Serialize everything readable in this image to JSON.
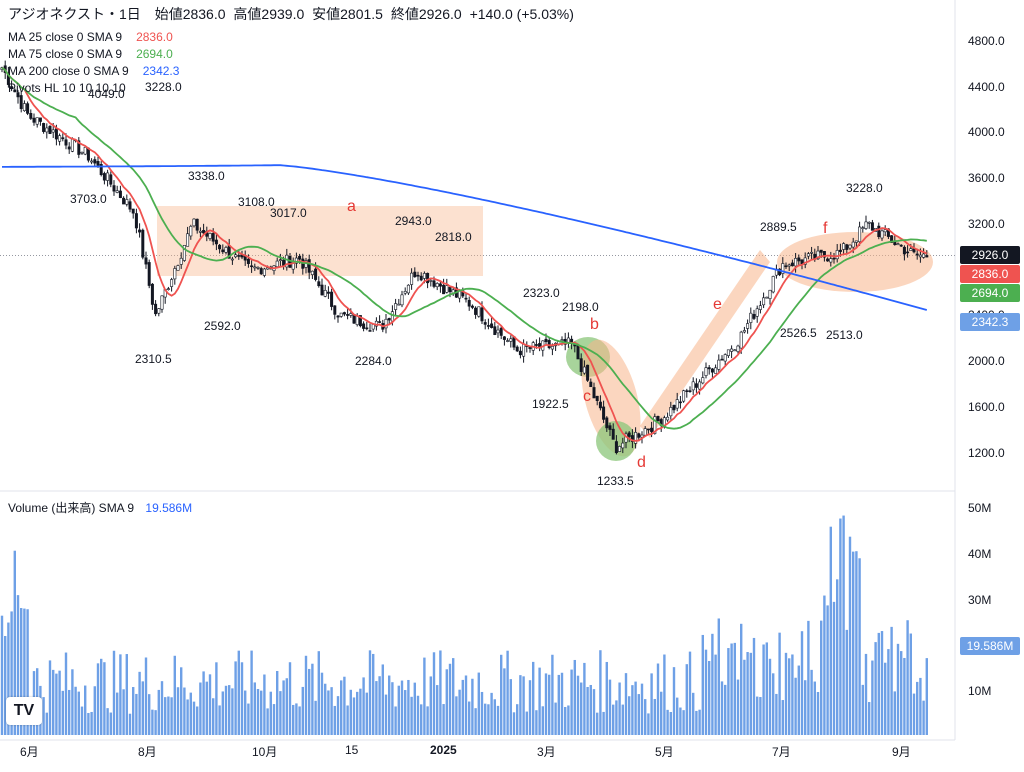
{
  "header": {
    "symbol": "アジオネクスト・1日",
    "open_label": "始値",
    "open": "2836.0",
    "high_label": "高値",
    "high": "2939.0",
    "low_label": "安値",
    "low": "2801.5",
    "close_label": "終値",
    "close": "2926.0",
    "change": "+140.0 (+5.03%)"
  },
  "indicators": [
    {
      "label": "MA 25 close 0 SMA 9",
      "value": "2836.0",
      "color": "#ef5350"
    },
    {
      "label": "MA 75 close 0 SMA 9",
      "value": "2694.0",
      "color": "#4caf50"
    },
    {
      "label": "MA 200 close 0 SMA 9",
      "value": "2342.3",
      "color": "#2962ff"
    },
    {
      "label": "Pivots HL 10 10 10 10",
      "value": "",
      "color": "#131722"
    }
  ],
  "volume_header": {
    "label": "Volume (出来高)  SMA 9",
    "value": "19.586M"
  },
  "price_axis": [
    "4800.0",
    "4400.0",
    "4000.0",
    "3600.0",
    "3200.0",
    "2400.0",
    "2000.0",
    "1600.0",
    "1200.0"
  ],
  "volume_axis": [
    "50M",
    "40M",
    "30M",
    "10M"
  ],
  "time_axis": [
    "6月",
    "8月",
    "10月",
    "15",
    "2025",
    "3月",
    "5月",
    "7月",
    "9月"
  ],
  "price_labels": {
    "last": "2926.0",
    "ma25": "2836.0",
    "ma75": "2694.0",
    "ma200": "2342.3",
    "volume": "19.586M"
  },
  "pivots": [
    "4049.0",
    "3228.0",
    "3703.0",
    "3338.0",
    "3108.0",
    "3017.0",
    "2310.5",
    "2592.0",
    "2943.0",
    "2818.0",
    "2284.0",
    "2323.0",
    "2198.0",
    "1922.5",
    "1233.5",
    "2889.5",
    "3228.0",
    "2526.5",
    "2513.0"
  ],
  "annotations": [
    "a",
    "b",
    "c",
    "d",
    "e",
    "f"
  ],
  "colors": {
    "up": "#ffffff",
    "down": "#131722",
    "ma25": "#ef5350",
    "ma75": "#4caf50",
    "ma200": "#2962ff",
    "volume": "#6ea0e6",
    "highlight": "#f7b58a",
    "green_zone": "#8bc57a"
  },
  "chart_data": {
    "type": "candlestick",
    "title": "アジオネクスト・1日",
    "ylim": [
      1000,
      5000
    ],
    "x_range": [
      "2024-05",
      "2025-09"
    ],
    "ohlc_summary": {
      "open": 2836.0,
      "high": 2939.0,
      "low": 2801.5,
      "close": 2926.0
    },
    "close_path": [
      {
        "x": "2024-05",
        "y": 4600
      },
      {
        "x": "2024-06",
        "y": 4150
      },
      {
        "x": "2024-07",
        "y": 3800
      },
      {
        "x": "2024-07-25",
        "y": 3300
      },
      {
        "x": "2024-08-05",
        "y": 2400
      },
      {
        "x": "2024-08-25",
        "y": 3200
      },
      {
        "x": "2024-09-25",
        "y": 2800
      },
      {
        "x": "2024-10-20",
        "y": 2900
      },
      {
        "x": "2024-11-10",
        "y": 2400
      },
      {
        "x": "2024-12-01",
        "y": 2300
      },
      {
        "x": "2024-12-20",
        "y": 2800
      },
      {
        "x": "2025-01-20",
        "y": 2500
      },
      {
        "x": "2025-02-15",
        "y": 2100
      },
      {
        "x": "2025-03-15",
        "y": 2150
      },
      {
        "x": "2025-04-07",
        "y": 1250
      },
      {
        "x": "2025-05-01",
        "y": 1500
      },
      {
        "x": "2025-06-10",
        "y": 2200
      },
      {
        "x": "2025-07-01",
        "y": 2850
      },
      {
        "x": "2025-08-01",
        "y": 2950
      },
      {
        "x": "2025-08-15",
        "y": 3200
      },
      {
        "x": "2025-09-10",
        "y": 2926
      }
    ],
    "series": [
      {
        "name": "MA 25 close 0 SMA 9",
        "last": 2836.0
      },
      {
        "name": "MA 75 close 0 SMA 9",
        "last": 2694.0
      },
      {
        "name": "MA 200 close 0 SMA 9",
        "last": 2342.3
      }
    ],
    "volume_last": "19.586M",
    "legend": "top-left",
    "grid": false
  }
}
